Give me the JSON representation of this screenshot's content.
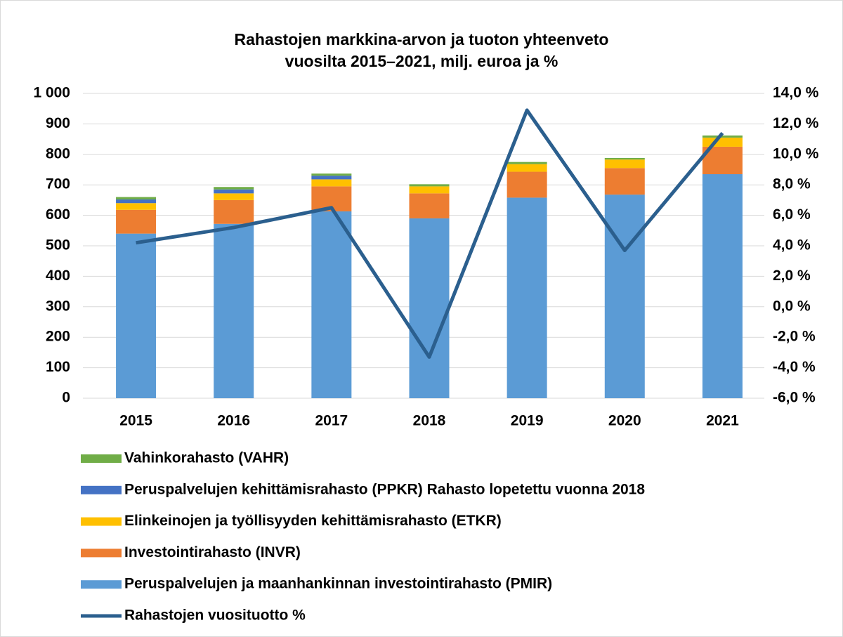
{
  "chart_data": {
    "type": "bar",
    "stacked": true,
    "title": [
      "Rahastojen markkina-arvon ja tuoton yhteenveto",
      "vuosilta 2015–2021, milj. euroa ja %"
    ],
    "categories": [
      "2015",
      "2016",
      "2017",
      "2018",
      "2019",
      "2020",
      "2021"
    ],
    "series": [
      {
        "name": "Peruspalvelujen ja maanhankinnan investointirahasto (PMIR)",
        "type": "bar",
        "color": "#5b9bd5",
        "values": [
          540,
          572,
          613,
          590,
          658,
          668,
          735
        ]
      },
      {
        "name": "Investointirahasto (INVR)",
        "type": "bar",
        "color": "#ed7d31",
        "values": [
          78,
          78,
          82,
          82,
          85,
          87,
          90
        ]
      },
      {
        "name": "Elinkeinojen ja työllisyyden kehittämisrahasto (ETKR)",
        "type": "bar",
        "color": "#ffc000",
        "values": [
          22,
          22,
          23,
          23,
          25,
          28,
          30
        ]
      },
      {
        "name": "Peruspalvelujen kehittämisrahasto (PPKR) Rahasto lopetettu vuonna 2018",
        "type": "bar",
        "color": "#4472c4",
        "values": [
          12,
          13,
          12,
          null,
          null,
          null,
          null
        ]
      },
      {
        "name": "Vahinkorahasto (VAHR)",
        "type": "bar",
        "color": "#70ad47",
        "values": [
          8,
          8,
          7,
          7,
          7,
          5,
          7
        ]
      },
      {
        "name": "Rahastojen vuosituotto %",
        "type": "line",
        "axis": "y2",
        "color": "#2b5f8e",
        "values": [
          4.2,
          5.2,
          6.5,
          -3.3,
          12.9,
          3.7,
          11.4
        ]
      }
    ],
    "ylim": [
      0,
      1000
    ],
    "yticks": [
      0,
      100,
      200,
      300,
      400,
      500,
      600,
      700,
      800,
      900,
      {
        "value": 1000,
        "label": "1 000"
      }
    ],
    "y2lim": [
      -6,
      14
    ],
    "y2ticks": [
      {
        "value": -6,
        "label": "-6,0 %"
      },
      {
        "value": -4,
        "label": "-4,0 %"
      },
      {
        "value": -2,
        "label": "-2,0 %"
      },
      {
        "value": 0,
        "label": "0,0 %"
      },
      {
        "value": 2,
        "label": "2,0 %"
      },
      {
        "value": 4,
        "label": "4,0 %"
      },
      {
        "value": 6,
        "label": "6,0 %"
      },
      {
        "value": 8,
        "label": "8,0 %"
      },
      {
        "value": 10,
        "label": "10,0 %"
      },
      {
        "value": 12,
        "label": "12,0 %"
      },
      {
        "value": 14,
        "label": "14,0 %"
      }
    ],
    "grid": true,
    "legend": "bottom"
  }
}
